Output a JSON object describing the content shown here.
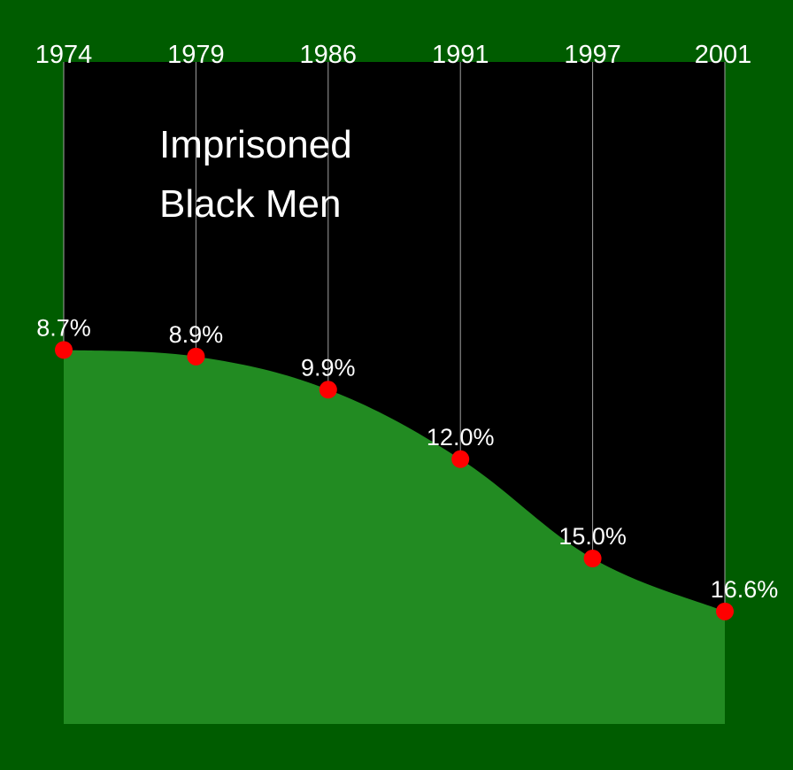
{
  "colors": {
    "background": "#005c00",
    "plot_background": "#000000",
    "area_fill": "#228b22",
    "marker": "#ff0000",
    "gridline": "#a0a0a0",
    "text": "#ffffff"
  },
  "chart_data": {
    "type": "area",
    "title_lines": [
      "Imprisoned",
      "Black Men"
    ],
    "x_axis_position": "top",
    "categories": [
      "1974",
      "1979",
      "1986",
      "1991",
      "1997",
      "2001"
    ],
    "series": [
      {
        "values": [
          8.7,
          8.9,
          9.9,
          12.0,
          15.0,
          16.6
        ],
        "value_labels": [
          "8.7%",
          "8.9%",
          "9.9%",
          "12.0%",
          "15.0%",
          "16.6%"
        ]
      }
    ],
    "ylim": [
      0,
      20
    ],
    "y_inverted": true,
    "grid": "vertical",
    "legend": "none"
  }
}
